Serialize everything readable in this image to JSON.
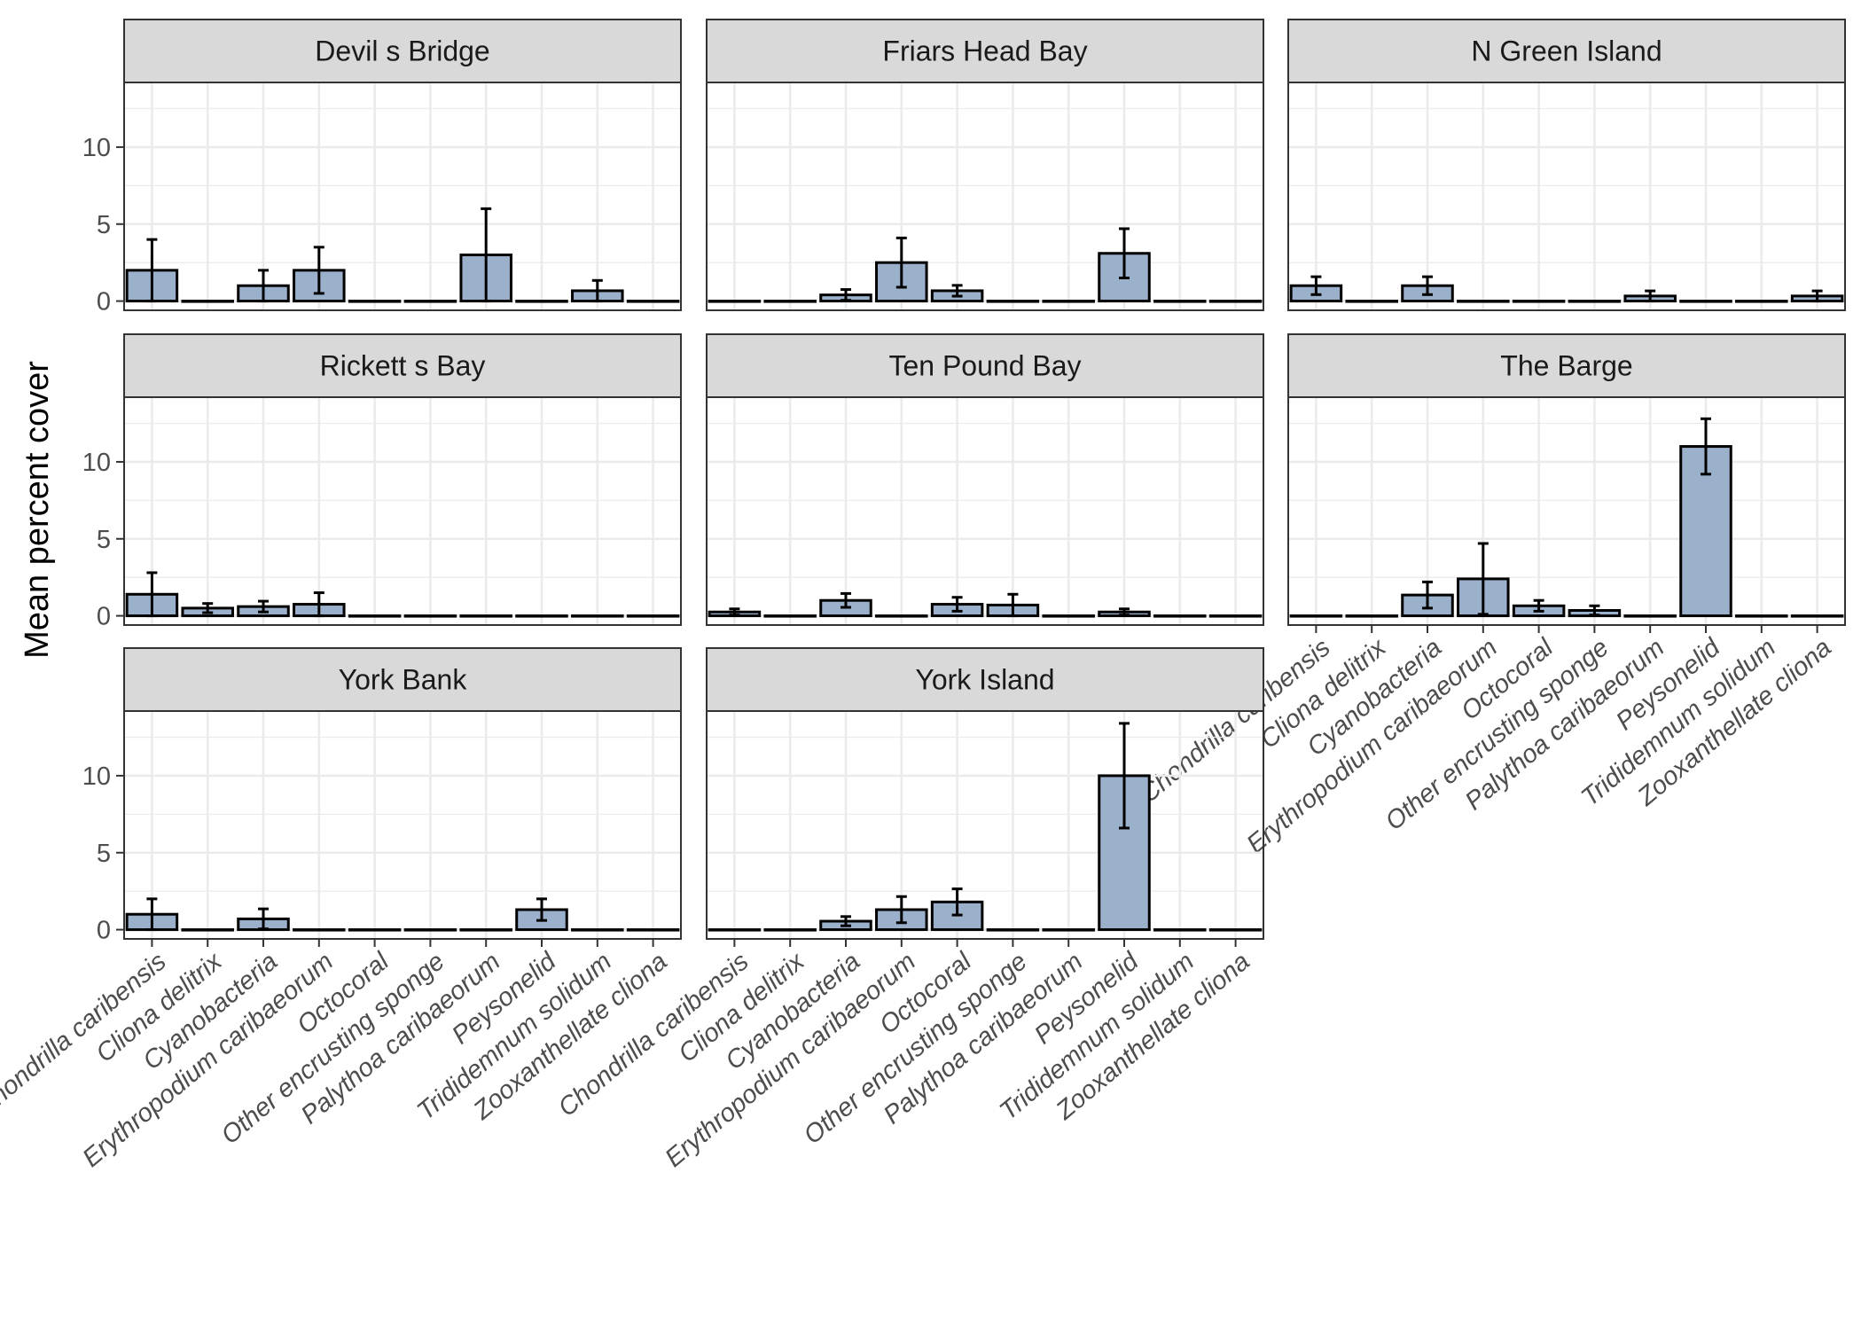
{
  "chart_data": {
    "type": "bar",
    "ylabel": "Mean percent cover",
    "xlabel": "",
    "ylim": [
      -0.6,
      14.2
    ],
    "yticks": [
      0,
      5,
      10
    ],
    "grid": true,
    "bar_color": "#9ab0cb",
    "strip_color": "#d9d9d9",
    "categories": [
      "Chondrilla caribensis",
      "Cliona delitrix",
      "Cyanobacteria",
      "Erythropodium caribaeorum",
      "Octocoral",
      "Other encrusting sponge",
      "Palythoa caribaeorum",
      "Peysonelid",
      "Trididemnum solidum",
      "Zooxanthellate cliona"
    ],
    "panels": [
      {
        "name": "Devil s Bridge",
        "values": [
          2.0,
          0,
          1.0,
          2.0,
          0,
          0,
          3.0,
          0,
          0.67,
          0
        ],
        "errors": [
          2.0,
          0,
          1.0,
          1.5,
          0,
          0,
          3.0,
          0,
          0.67,
          0
        ]
      },
      {
        "name": "Friars Head Bay",
        "values": [
          0,
          0,
          0.4,
          2.5,
          0.67,
          0,
          0,
          3.1,
          0,
          0
        ],
        "errors": [
          0,
          0,
          0.35,
          1.6,
          0.35,
          0,
          0,
          1.6,
          0,
          0
        ]
      },
      {
        "name": "N Green Island",
        "values": [
          1.0,
          0,
          1.0,
          0,
          0,
          0,
          0.33,
          0,
          0,
          0.33
        ],
        "errors": [
          0.58,
          0,
          0.58,
          0,
          0,
          0,
          0.33,
          0,
          0,
          0.33
        ]
      },
      {
        "name": "Rickett s Bay",
        "values": [
          1.4,
          0.5,
          0.6,
          0.75,
          0,
          0,
          0,
          0,
          0,
          0
        ],
        "errors": [
          1.4,
          0.3,
          0.35,
          0.75,
          0,
          0,
          0,
          0,
          0,
          0
        ]
      },
      {
        "name": "Ten Pound Bay",
        "values": [
          0.25,
          0,
          1.0,
          0,
          0.75,
          0.7,
          0,
          0.25,
          0,
          0
        ],
        "errors": [
          0.2,
          0,
          0.45,
          0,
          0.45,
          0.7,
          0,
          0.2,
          0,
          0
        ]
      },
      {
        "name": "The Barge",
        "values": [
          0,
          0,
          1.35,
          2.4,
          0.65,
          0.35,
          0,
          11.0,
          0,
          0
        ],
        "errors": [
          0,
          0,
          0.85,
          2.3,
          0.35,
          0.3,
          0,
          1.8,
          0,
          0
        ]
      },
      {
        "name": "York Bank",
        "values": [
          1.0,
          0,
          0.7,
          0,
          0,
          0,
          0,
          1.3,
          0,
          0
        ],
        "errors": [
          1.0,
          0,
          0.65,
          0,
          0,
          0,
          0,
          0.7,
          0,
          0
        ]
      },
      {
        "name": "York Island",
        "values": [
          0,
          0,
          0.55,
          1.3,
          1.8,
          0,
          0,
          10.0,
          0,
          0
        ],
        "errors": [
          0,
          0,
          0.3,
          0.85,
          0.85,
          0,
          0,
          3.4,
          0,
          0
        ]
      }
    ]
  }
}
